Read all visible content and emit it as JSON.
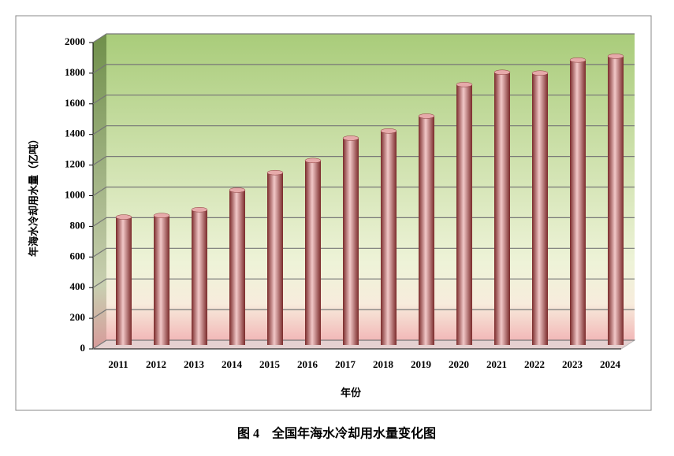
{
  "chart_data": {
    "type": "bar",
    "caption": "图 4　全国年海水冷却用水量变化图",
    "x_label": "年份",
    "y_label": "年海水冷却用水量（亿吨）",
    "categories": [
      "2011",
      "2012",
      "2013",
      "2014",
      "2015",
      "2016",
      "2017",
      "2018",
      "2019",
      "2020",
      "2021",
      "2022",
      "2023",
      "2024"
    ],
    "values": [
      835,
      845,
      883,
      1011,
      1125,
      1204,
      1350,
      1397,
      1494,
      1700,
      1780,
      1775,
      1860,
      1885
    ],
    "color": "#b85a5a",
    "ylim": [
      0,
      2000
    ],
    "yticks": [
      0,
      200,
      400,
      600,
      800,
      1000,
      1200,
      1400,
      1600,
      1800,
      2000
    ],
    "grid": true
  }
}
